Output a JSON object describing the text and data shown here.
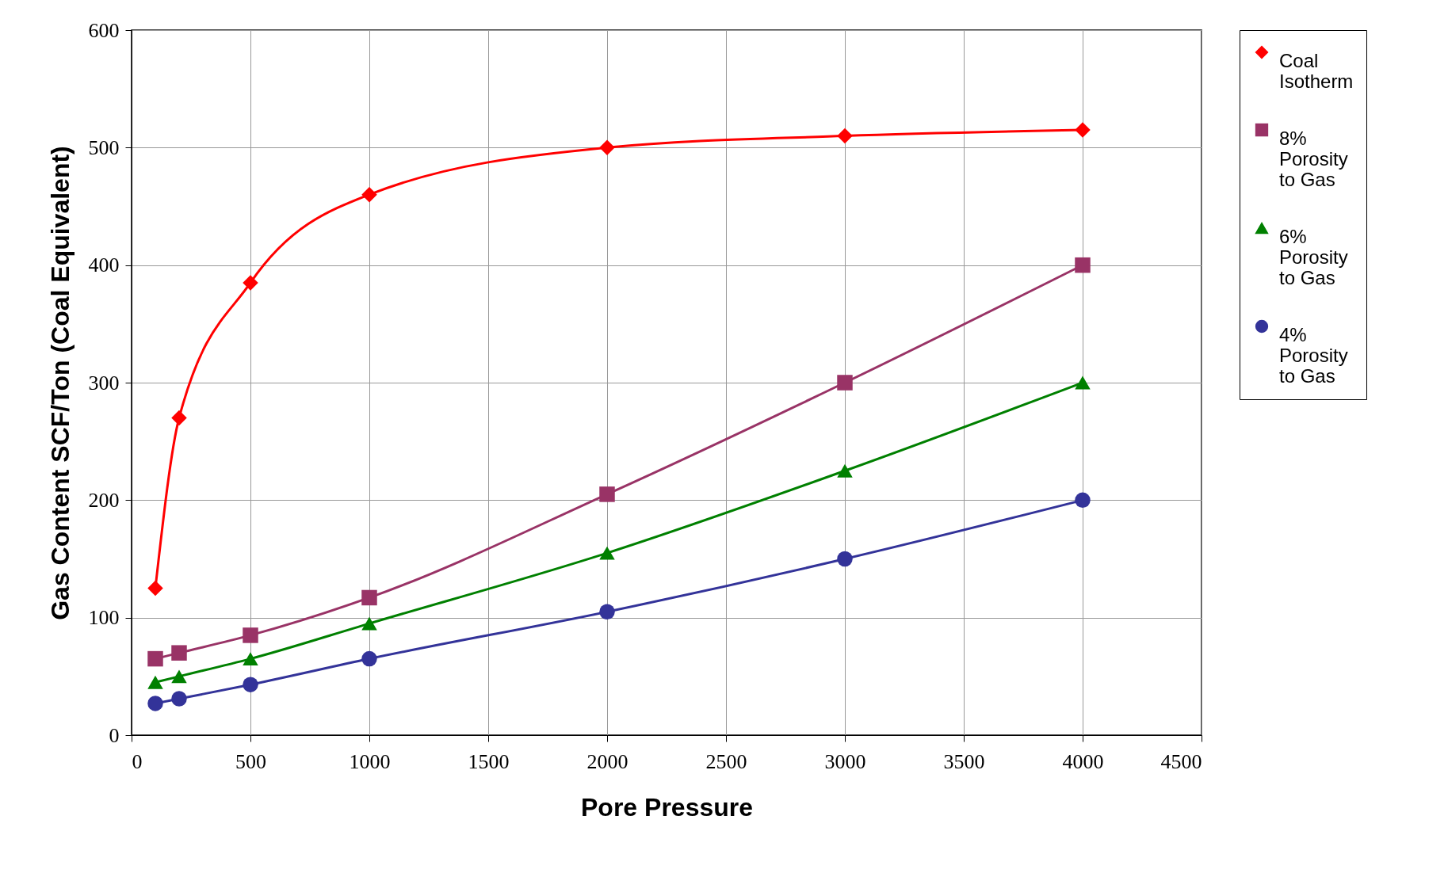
{
  "chart_data": {
    "type": "line",
    "xlabel": "Pore Pressure",
    "ylabel": "Gas Content SCF/Ton (Coal Equivalent)",
    "x": [
      100,
      200,
      500,
      1000,
      2000,
      3000,
      4000
    ],
    "series": [
      {
        "name": "Coal Isotherm",
        "color": "#ff0000",
        "marker": "diamond",
        "values": [
          125,
          270,
          385,
          460,
          500,
          510,
          515
        ]
      },
      {
        "name": "8% Porosity to Gas",
        "color": "#993366",
        "marker": "square",
        "values": [
          65,
          70,
          85,
          117,
          205,
          300,
          400
        ]
      },
      {
        "name": "6% Porosity to Gas",
        "color": "#008000",
        "marker": "triangle",
        "values": [
          45,
          50,
          65,
          95,
          155,
          225,
          300
        ]
      },
      {
        "name": "4% Porosity to Gas",
        "color": "#333399",
        "marker": "circle",
        "values": [
          27,
          31,
          43,
          65,
          105,
          150,
          200
        ]
      }
    ],
    "xlim": [
      0,
      4500
    ],
    "xticks": [
      0,
      500,
      1000,
      1500,
      2000,
      2500,
      3000,
      3500,
      4000,
      4500
    ],
    "ylim": [
      0,
      600
    ],
    "yticks": [
      0,
      100,
      200,
      300,
      400,
      500,
      600
    ],
    "grid": true,
    "legend": "right",
    "line_style": "solid"
  }
}
